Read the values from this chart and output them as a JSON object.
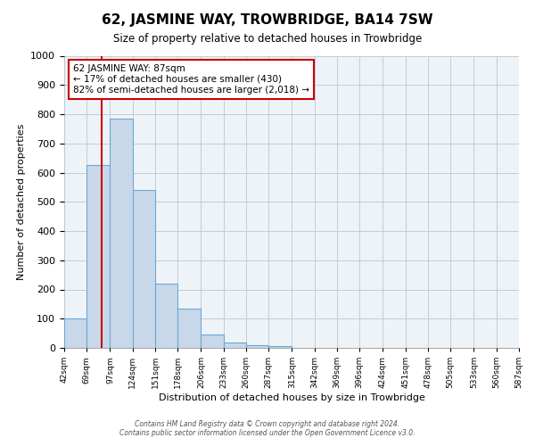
{
  "title": "62, JASMINE WAY, TROWBRIDGE, BA14 7SW",
  "subtitle": "Size of property relative to detached houses in Trowbridge",
  "xlabel": "Distribution of detached houses by size in Trowbridge",
  "ylabel": "Number of detached properties",
  "bin_edges": [
    42,
    69,
    97,
    124,
    151,
    178,
    206,
    233,
    260,
    287,
    315,
    342,
    369,
    396,
    424,
    451,
    478,
    505,
    533,
    560,
    587
  ],
  "bar_heights": [
    100,
    625,
    785,
    540,
    220,
    133,
    45,
    18,
    10,
    5,
    0,
    0,
    0,
    0,
    0,
    0,
    0,
    0,
    0,
    0
  ],
  "bar_color": "#c8d8ea",
  "bar_edge_color": "#6aaad4",
  "vline_x": 87,
  "vline_color": "#cc0000",
  "ylim": [
    0,
    1000
  ],
  "xlim": [
    42,
    587
  ],
  "annotation_text": "62 JASMINE WAY: 87sqm\n← 17% of detached houses are smaller (430)\n82% of semi-detached houses are larger (2,018) →",
  "annotation_box_color": "#ffffff",
  "annotation_box_edge_color": "#cc0000",
  "footer1": "Contains HM Land Registry data © Crown copyright and database right 2024.",
  "footer2": "Contains public sector information licensed under the Open Government Licence v3.0.",
  "bg_color": "#eef3f8",
  "grid_color": "#c0cdd8"
}
